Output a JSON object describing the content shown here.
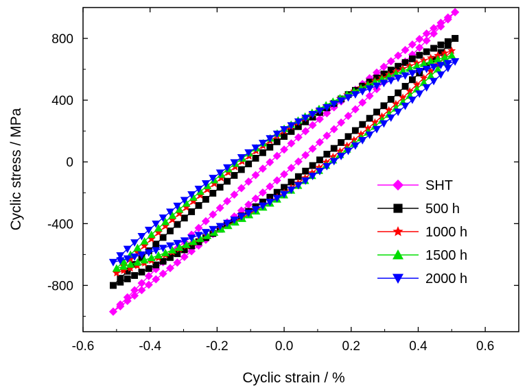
{
  "chart_data": {
    "type": "line",
    "xlabel": "Cyclic strain / %",
    "ylabel": "Cyclic stress / MPa",
    "xlim": [
      -0.6,
      0.7
    ],
    "ylim": [
      -1100,
      1000
    ],
    "x_ticks": [
      -0.6,
      -0.4,
      -0.2,
      0.0,
      0.2,
      0.4,
      0.6
    ],
    "x_tick_labels": [
      "-0.6",
      "-0.4",
      "-0.2",
      "0.0",
      "0.2",
      "0.4",
      "0.6"
    ],
    "y_ticks": [
      -800,
      -400,
      0,
      400,
      800
    ],
    "y_tick_labels": [
      "-800",
      "-400",
      "0",
      "400",
      "800"
    ],
    "legend_position": "lower-right",
    "grid": false,
    "series": [
      {
        "name": "SHT",
        "color": "#ff00ff",
        "marker": "diamond",
        "strain_amplitude": 0.51,
        "stress_amplitude": 970,
        "width_at_zero_strain": 80
      },
      {
        "name": "500 h",
        "color": "#000000",
        "marker": "square",
        "strain_amplitude": 0.51,
        "stress_amplitude": 800,
        "width_at_zero_strain": 165
      },
      {
        "name": "1000 h",
        "color": "#ff0000",
        "marker": "star",
        "strain_amplitude": 0.5,
        "stress_amplitude": 720,
        "width_at_zero_strain": 200
      },
      {
        "name": "1500 h",
        "color": "#00dd00",
        "marker": "triangle-up",
        "strain_amplitude": 0.5,
        "stress_amplitude": 690,
        "width_at_zero_strain": 215
      },
      {
        "name": "2000 h",
        "color": "#0000ff",
        "marker": "triangle-down",
        "strain_amplitude": 0.51,
        "stress_amplitude": 650,
        "width_at_zero_strain": 210
      }
    ]
  }
}
